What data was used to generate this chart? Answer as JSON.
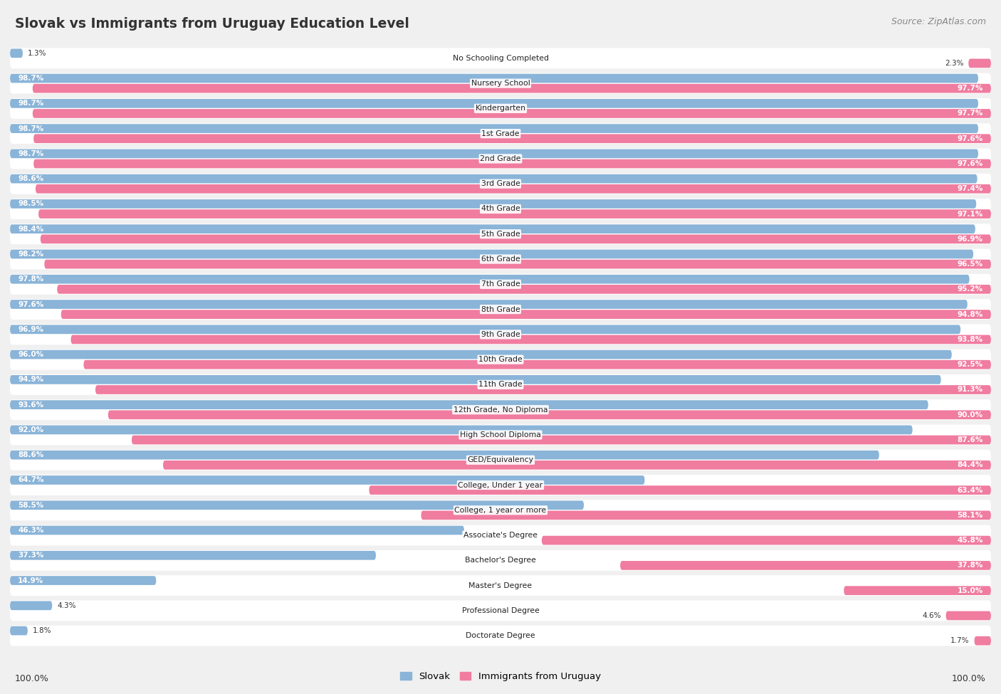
{
  "title": "Slovak vs Immigrants from Uruguay Education Level",
  "source": "Source: ZipAtlas.com",
  "categories": [
    "No Schooling Completed",
    "Nursery School",
    "Kindergarten",
    "1st Grade",
    "2nd Grade",
    "3rd Grade",
    "4th Grade",
    "5th Grade",
    "6th Grade",
    "7th Grade",
    "8th Grade",
    "9th Grade",
    "10th Grade",
    "11th Grade",
    "12th Grade, No Diploma",
    "High School Diploma",
    "GED/Equivalency",
    "College, Under 1 year",
    "College, 1 year or more",
    "Associate's Degree",
    "Bachelor's Degree",
    "Master's Degree",
    "Professional Degree",
    "Doctorate Degree"
  ],
  "slovak": [
    1.3,
    98.7,
    98.7,
    98.7,
    98.7,
    98.6,
    98.5,
    98.4,
    98.2,
    97.8,
    97.6,
    96.9,
    96.0,
    94.9,
    93.6,
    92.0,
    88.6,
    64.7,
    58.5,
    46.3,
    37.3,
    14.9,
    4.3,
    1.8
  ],
  "uruguay": [
    2.3,
    97.7,
    97.7,
    97.6,
    97.6,
    97.4,
    97.1,
    96.9,
    96.5,
    95.2,
    94.8,
    93.8,
    92.5,
    91.3,
    90.0,
    87.6,
    84.4,
    63.4,
    58.1,
    45.8,
    37.8,
    15.0,
    4.6,
    1.7
  ],
  "slovak_color": "#8ab4d8",
  "uruguay_color": "#f07ca0",
  "bg_color": "#f0f0f0",
  "row_bg_color": "#ffffff",
  "legend_slovak": "Slovak",
  "legend_uruguay": "Immigrants from Uruguay"
}
